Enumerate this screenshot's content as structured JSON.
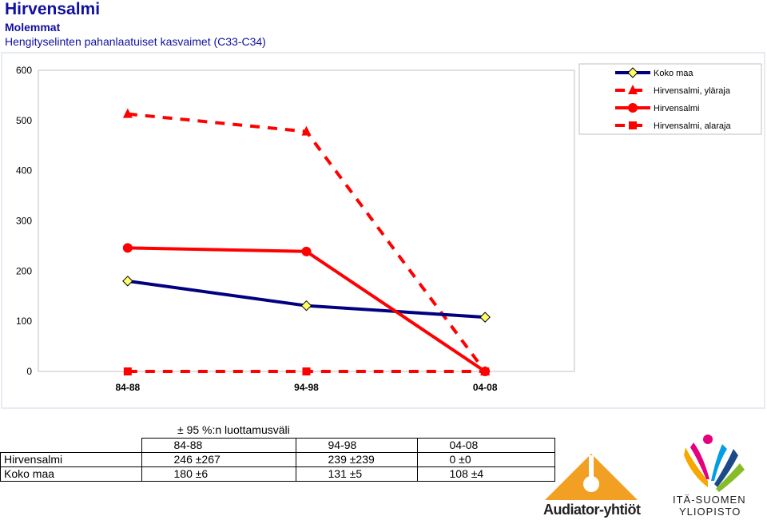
{
  "header": {
    "title": "Hirvensalmi",
    "subtitle": "Molemmat",
    "description": "Hengityselinten pahanlaatuiset kasvaimet (C33-C34)"
  },
  "chart_data": {
    "type": "line",
    "categories": [
      "84-88",
      "94-98",
      "04-08"
    ],
    "ylim": [
      0,
      600
    ],
    "yticks": [
      "0",
      "100",
      "200",
      "300",
      "400",
      "500",
      "600"
    ],
    "legend_position": "top-right",
    "series": [
      {
        "name": "Koko maa",
        "values": [
          180,
          131,
          108
        ],
        "color": "#000080",
        "style": "solid",
        "marker": "diamond"
      },
      {
        "name": "Hirvensalmi, yläraja",
        "values": [
          513,
          478,
          0
        ],
        "color": "#ff0000",
        "style": "dashed",
        "marker": "triangle"
      },
      {
        "name": "Hirvensalmi",
        "values": [
          246,
          239,
          0
        ],
        "color": "#ff0000",
        "style": "solid",
        "marker": "circle"
      },
      {
        "name": "Hirvensalmi, alaraja",
        "values": [
          0,
          0,
          0
        ],
        "color": "#ff0000",
        "style": "dashed",
        "marker": "square"
      }
    ]
  },
  "ci_table": {
    "caption": "± 95 %:n luottamusväli",
    "columns": [
      "84-88",
      "94-98",
      "04-08"
    ],
    "rows": [
      {
        "label": "Hirvensalmi",
        "values": [
          "246 ±267",
          "239 ±239",
          "0 ±0"
        ]
      },
      {
        "label": "Koko maa",
        "values": [
          "180 ±6",
          "131 ±5",
          "108 ±4"
        ]
      }
    ]
  },
  "logos": {
    "left": "Audiator-yhtiöt",
    "right_line1": "ITÄ-SUOMEN",
    "right_line2": "YLIOPISTO"
  },
  "colors": {
    "plot_border": "#c0c0c0",
    "frame_bg": "#f4f8fc",
    "koko_maa": "#000080",
    "hirvensalmi": "#ff0000"
  }
}
